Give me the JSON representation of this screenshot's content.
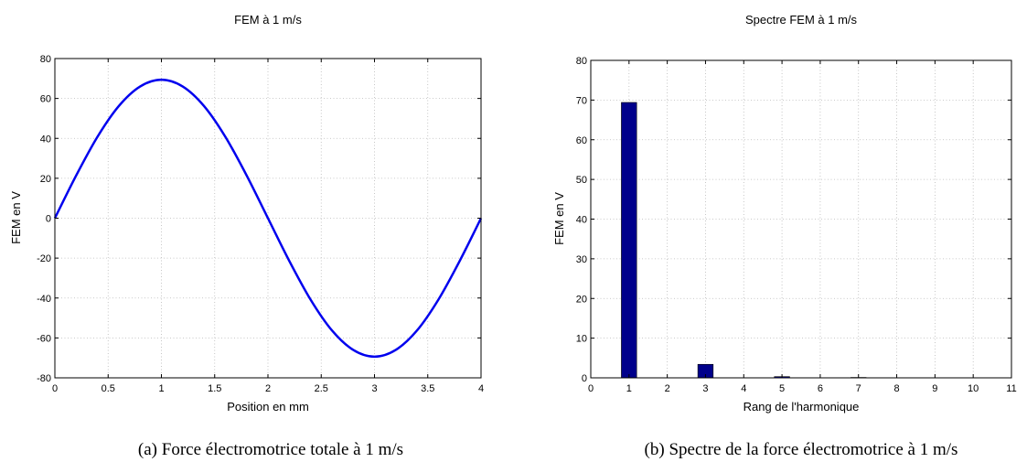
{
  "chart_data": [
    {
      "type": "line",
      "title": "FEM à 1 m/s",
      "xlabel": "Position en mm",
      "ylabel": "FEM en V",
      "caption": "(a)  Force électromotrice totale à 1 m/s",
      "xlim": [
        0,
        4
      ],
      "ylim": [
        -80,
        80
      ],
      "xticks": [
        0,
        0.5,
        1,
        1.5,
        2,
        2.5,
        3,
        3.5,
        4
      ],
      "xtick_labels": [
        "0",
        "0.5",
        "1",
        "1.5",
        "2",
        "2.5",
        "3",
        "3.5",
        "4"
      ],
      "yticks": [
        -80,
        -60,
        -40,
        -20,
        0,
        20,
        40,
        60,
        80
      ],
      "ytick_labels": [
        "-80",
        "-60",
        "-40",
        "-20",
        "0",
        "20",
        "40",
        "60",
        "80"
      ],
      "grid": true,
      "series": [
        {
          "color": "#0000ee",
          "x": [
            0,
            0.2,
            0.4,
            0.6,
            0.8,
            1.0,
            1.2,
            1.4,
            1.6,
            1.8,
            2.0,
            2.2,
            2.4,
            2.6,
            2.8,
            3.0,
            3.2,
            3.4,
            3.6,
            3.8,
            4.0
          ],
          "y": [
            0,
            21.4,
            40.8,
            56.2,
            66.0,
            69.4,
            66.0,
            56.2,
            40.8,
            21.4,
            0,
            -21.4,
            -40.8,
            -56.2,
            -66.0,
            -69.4,
            -66.0,
            -56.2,
            -40.8,
            -21.4,
            0
          ]
        }
      ]
    },
    {
      "type": "bar",
      "title": "Spectre FEM à 1 m/s",
      "xlabel": "Rang de l'harmonique",
      "ylabel": "FEM en V",
      "caption": "(b)  Spectre de la force électromotrice à 1 m/s",
      "xlim": [
        0,
        11
      ],
      "ylim": [
        0,
        80
      ],
      "xticks": [
        0,
        1,
        2,
        3,
        4,
        5,
        6,
        7,
        8,
        9,
        10,
        11
      ],
      "xtick_labels": [
        "0",
        "1",
        "2",
        "3",
        "4",
        "5",
        "6",
        "7",
        "8",
        "9",
        "10",
        "11"
      ],
      "yticks": [
        0,
        10,
        20,
        30,
        40,
        50,
        60,
        70,
        80
      ],
      "ytick_labels": [
        "0",
        "10",
        "20",
        "30",
        "40",
        "50",
        "60",
        "70",
        "80"
      ],
      "grid": true,
      "bar_color": "#00008b",
      "x": [
        1,
        2,
        3,
        4,
        5,
        6,
        7,
        8,
        9,
        10
      ],
      "values": [
        69.4,
        0,
        3.4,
        0,
        0.3,
        0,
        0.1,
        0,
        0,
        0
      ]
    }
  ]
}
